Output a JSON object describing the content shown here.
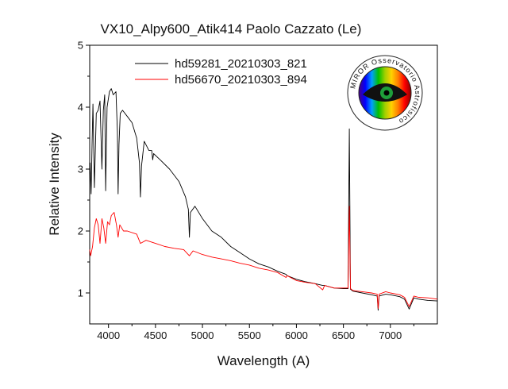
{
  "chart_data": {
    "type": "line",
    "title": "VX10_Alpy600_Atik414 Paolo Cazzato (Le)",
    "xlabel": "Wavelength (A)",
    "ylabel": "Relative Intensity",
    "xlim": [
      3800,
      7500
    ],
    "ylim": [
      0.5,
      5
    ],
    "xticks": [
      4000,
      4500,
      5000,
      5500,
      6000,
      6500,
      7000
    ],
    "yticks": [
      1,
      2,
      3,
      4,
      5
    ],
    "grid": false,
    "legend_position": "top-left",
    "series": [
      {
        "name": "hd59281_20210303_821",
        "color": "#000000",
        "points": [
          [
            3800,
            2.9
          ],
          [
            3805,
            3.1
          ],
          [
            3815,
            2.6
          ],
          [
            3825,
            3.4
          ],
          [
            3835,
            4.05
          ],
          [
            3850,
            2.7
          ],
          [
            3870,
            3.9
          ],
          [
            3890,
            3.95
          ],
          [
            3910,
            4.1
          ],
          [
            3930,
            3.0
          ],
          [
            3945,
            3.95
          ],
          [
            3960,
            4.2
          ],
          [
            3970,
            2.65
          ],
          [
            3985,
            4.0
          ],
          [
            4000,
            4.15
          ],
          [
            4010,
            4.25
          ],
          [
            4030,
            4.3
          ],
          [
            4050,
            4.2
          ],
          [
            4080,
            4.25
          ],
          [
            4095,
            3.6
          ],
          [
            4102,
            2.6
          ],
          [
            4112,
            3.4
          ],
          [
            4125,
            3.9
          ],
          [
            4150,
            3.95
          ],
          [
            4200,
            3.85
          ],
          [
            4250,
            3.75
          ],
          [
            4300,
            3.5
          ],
          [
            4330,
            3.1
          ],
          [
            4340,
            2.55
          ],
          [
            4352,
            3.05
          ],
          [
            4380,
            3.45
          ],
          [
            4430,
            3.3
          ],
          [
            4460,
            3.3
          ],
          [
            4471,
            3.15
          ],
          [
            4480,
            3.25
          ],
          [
            4550,
            3.15
          ],
          [
            4650,
            3.0
          ],
          [
            4750,
            2.8
          ],
          [
            4820,
            2.55
          ],
          [
            4850,
            2.35
          ],
          [
            4861,
            1.9
          ],
          [
            4872,
            2.3
          ],
          [
            4920,
            2.4
          ],
          [
            5000,
            2.2
          ],
          [
            5100,
            2.0
          ],
          [
            5200,
            1.9
          ],
          [
            5300,
            1.75
          ],
          [
            5400,
            1.65
          ],
          [
            5500,
            1.55
          ],
          [
            5600,
            1.47
          ],
          [
            5700,
            1.42
          ],
          [
            5800,
            1.35
          ],
          [
            5890,
            1.3
          ],
          [
            5900,
            1.28
          ],
          [
            6000,
            1.22
          ],
          [
            6100,
            1.18
          ],
          [
            6200,
            1.15
          ],
          [
            6280,
            1.12
          ],
          [
            6300,
            1.12
          ],
          [
            6400,
            1.08
          ],
          [
            6500,
            1.07
          ],
          [
            6550,
            1.07
          ],
          [
            6563,
            3.65
          ],
          [
            6575,
            1.06
          ],
          [
            6600,
            1.03
          ],
          [
            6700,
            1.0
          ],
          [
            6800,
            0.97
          ],
          [
            6860,
            0.95
          ],
          [
            6870,
            0.72
          ],
          [
            6880,
            0.95
          ],
          [
            6950,
            0.98
          ],
          [
            7000,
            0.97
          ],
          [
            7100,
            0.94
          ],
          [
            7150,
            0.9
          ],
          [
            7200,
            0.74
          ],
          [
            7250,
            0.92
          ],
          [
            7300,
            0.9
          ],
          [
            7400,
            0.88
          ],
          [
            7500,
            0.87
          ]
        ]
      },
      {
        "name": "hd56670_20210303_894",
        "color": "#ff0000",
        "points": [
          [
            3800,
            1.7
          ],
          [
            3810,
            1.6
          ],
          [
            3830,
            1.75
          ],
          [
            3850,
            2.05
          ],
          [
            3870,
            2.2
          ],
          [
            3890,
            2.1
          ],
          [
            3910,
            1.8
          ],
          [
            3930,
            2.2
          ],
          [
            3950,
            2.05
          ],
          [
            3970,
            1.8
          ],
          [
            3990,
            2.15
          ],
          [
            4010,
            2.1
          ],
          [
            4030,
            2.25
          ],
          [
            4060,
            2.3
          ],
          [
            4085,
            2.1
          ],
          [
            4102,
            1.9
          ],
          [
            4120,
            2.1
          ],
          [
            4160,
            2.0
          ],
          [
            4200,
            2.0
          ],
          [
            4300,
            1.95
          ],
          [
            4340,
            1.8
          ],
          [
            4400,
            1.85
          ],
          [
            4500,
            1.8
          ],
          [
            4600,
            1.75
          ],
          [
            4700,
            1.72
          ],
          [
            4800,
            1.7
          ],
          [
            4861,
            1.6
          ],
          [
            4900,
            1.68
          ],
          [
            5000,
            1.62
          ],
          [
            5100,
            1.58
          ],
          [
            5200,
            1.55
          ],
          [
            5300,
            1.52
          ],
          [
            5400,
            1.48
          ],
          [
            5500,
            1.45
          ],
          [
            5600,
            1.4
          ],
          [
            5700,
            1.37
          ],
          [
            5800,
            1.33
          ],
          [
            5890,
            1.25
          ],
          [
            5900,
            1.28
          ],
          [
            6000,
            1.2
          ],
          [
            6100,
            1.17
          ],
          [
            6200,
            1.15
          ],
          [
            6280,
            1.05
          ],
          [
            6300,
            1.12
          ],
          [
            6400,
            1.08
          ],
          [
            6500,
            1.08
          ],
          [
            6550,
            1.08
          ],
          [
            6563,
            2.4
          ],
          [
            6575,
            1.07
          ],
          [
            6600,
            1.04
          ],
          [
            6700,
            1.02
          ],
          [
            6800,
            1.0
          ],
          [
            6860,
            0.98
          ],
          [
            6870,
            0.75
          ],
          [
            6880,
            0.98
          ],
          [
            6950,
            1.02
          ],
          [
            7000,
            1.0
          ],
          [
            7100,
            0.97
          ],
          [
            7150,
            0.93
          ],
          [
            7200,
            0.78
          ],
          [
            7250,
            0.95
          ],
          [
            7300,
            0.93
          ],
          [
            7400,
            0.92
          ],
          [
            7500,
            0.9
          ]
        ]
      }
    ]
  },
  "logo": {
    "ring_text": "MIROR Osservatorio Astrofisico",
    "spectrum_colors": [
      "#4b0082",
      "#0000ff",
      "#00a0ff",
      "#00c000",
      "#a0d000",
      "#ffd000",
      "#ff7f00",
      "#ff0000",
      "#8b0000"
    ]
  }
}
